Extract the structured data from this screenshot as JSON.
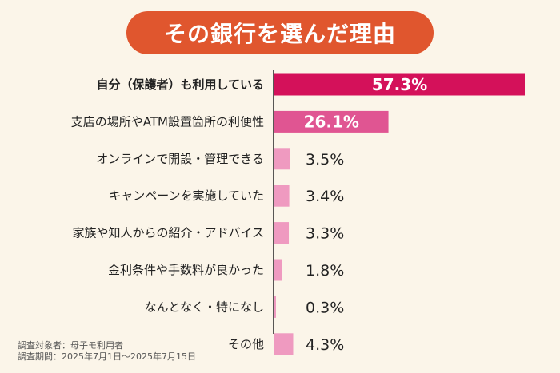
{
  "chart_data": {
    "type": "bar",
    "orientation": "horizontal",
    "title": "その銀行を選んだ理由",
    "categories": [
      "自分（保護者）も利用している",
      "支店の場所やATM設置箇所の利便性",
      "オンラインで開設・管理できる",
      "キャンペーンを実施していた",
      "家族や知人からの紹介・アドバイス",
      "金利条件や手数料が良かった",
      "なんとなく・特になし",
      "その他"
    ],
    "values": [
      57.3,
      26.1,
      3.5,
      3.4,
      3.3,
      1.8,
      0.3,
      4.3
    ],
    "value_labels": [
      "57.3%",
      "26.1%",
      "3.5%",
      "3.4%",
      "3.3%",
      "1.8%",
      "0.3%",
      "4.3%"
    ],
    "xlim": [
      0,
      57.3
    ],
    "grid": false,
    "colors": {
      "top": "#d4115a",
      "second": "#e05592",
      "rest": "#ef9ac0",
      "axis": "#222222",
      "title_bg": "#e0562e",
      "background": "#fbf5e9"
    }
  },
  "footnotes": [
    "調査対象者：母子モ利用者",
    "調査期間：2025年7月1日〜2025年7月15日"
  ]
}
